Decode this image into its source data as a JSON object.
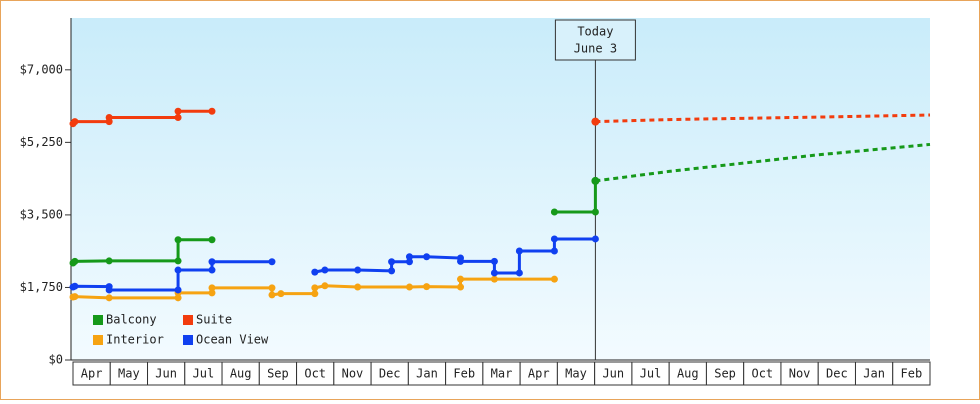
{
  "chart_data": {
    "type": "line",
    "xticks": [
      {
        "value": 0,
        "label": "Apr"
      },
      {
        "value": 1,
        "label": "May"
      },
      {
        "value": 2,
        "label": "Jun"
      },
      {
        "value": 3,
        "label": "Jul"
      },
      {
        "value": 4,
        "label": "Aug"
      },
      {
        "value": 5,
        "label": "Sep"
      },
      {
        "value": 6,
        "label": "Oct"
      },
      {
        "value": 7,
        "label": "Nov"
      },
      {
        "value": 8,
        "label": "Dec"
      },
      {
        "value": 9,
        "label": "Jan"
      },
      {
        "value": 10,
        "label": "Feb"
      },
      {
        "value": 11,
        "label": "Mar"
      },
      {
        "value": 12,
        "label": "Apr"
      },
      {
        "value": 13,
        "label": "May"
      },
      {
        "value": 14,
        "label": "Jun"
      },
      {
        "value": 15,
        "label": "Jul"
      },
      {
        "value": 16,
        "label": "Aug"
      },
      {
        "value": 17,
        "label": "Sep"
      },
      {
        "value": 18,
        "label": "Oct"
      },
      {
        "value": 19,
        "label": "Nov"
      },
      {
        "value": 20,
        "label": "Dec"
      },
      {
        "value": 21,
        "label": "Jan"
      },
      {
        "value": 22,
        "label": "Feb"
      }
    ],
    "xlim": [
      0,
      23
    ],
    "ylim": [
      0,
      8250
    ],
    "yticks": [
      {
        "value": 0,
        "label": "$0"
      },
      {
        "value": 1750,
        "label": "$1,750"
      },
      {
        "value": 3500,
        "label": "$3,500"
      },
      {
        "value": 5250,
        "label": "$5,250"
      },
      {
        "value": 7000,
        "label": "$7,000"
      }
    ],
    "annotation": {
      "lines": [
        "Today",
        "June 3"
      ],
      "x": 14.02
    },
    "legend": "lower left",
    "series": [
      {
        "name": "Balcony",
        "color": "#16991a",
        "x": [
          0,
          0.05,
          0.97,
          2.82,
          2.82,
          3.73,
          null,
          12.92,
          14.02,
          14.02
        ],
        "values": [
          2340,
          2380,
          2390,
          2390,
          2900,
          2900,
          null,
          3570,
          3570,
          4320
        ],
        "forecast_x": [
          14.02,
          16,
          18,
          20,
          23
        ],
        "forecast_values": [
          4320,
          4550,
          4750,
          4950,
          5200
        ]
      },
      {
        "name": "Suite",
        "color": "#f23c0e",
        "x": [
          0,
          0.05,
          0.97,
          0.97,
          2.82,
          2.82,
          3.73
        ],
        "values": [
          5700,
          5750,
          5750,
          5850,
          5850,
          6000,
          6000
        ],
        "forecast_x": [
          14.02,
          16,
          18,
          20,
          23
        ],
        "forecast_values": [
          5750,
          5800,
          5830,
          5860,
          5910
        ]
      },
      {
        "name": "Interior",
        "color": "#f6a312",
        "x": [
          0,
          0.05,
          0.97,
          2.82,
          2.82,
          3.73,
          3.73,
          5.34,
          5.34,
          5.58,
          6.49,
          6.49,
          6.76,
          7.64,
          9.03,
          9.49,
          10.4,
          10.4,
          11.31,
          12.92
        ],
        "values": [
          1520,
          1530,
          1500,
          1500,
          1620,
          1620,
          1740,
          1740,
          1570,
          1600,
          1600,
          1740,
          1790,
          1760,
          1760,
          1770,
          1760,
          1950,
          1950,
          1950
        ]
      },
      {
        "name": "Ocean View",
        "color": "#1040f0",
        "x": [
          0,
          0.05,
          0.97,
          0.97,
          2.82,
          2.82,
          3.73,
          3.73,
          5.34,
          null,
          6.49,
          6.76,
          7.64,
          8.55,
          8.55,
          9.03,
          9.03,
          9.49,
          10.4,
          10.4,
          11.31,
          11.31,
          11.98,
          11.98,
          12.92,
          12.92,
          14.02
        ],
        "values": [
          1760,
          1780,
          1770,
          1690,
          1690,
          2170,
          2170,
          2370,
          2370,
          null,
          2120,
          2170,
          2170,
          2150,
          2370,
          2370,
          2490,
          2490,
          2460,
          2380,
          2380,
          2100,
          2100,
          2630,
          2630,
          2920,
          2920
        ]
      }
    ]
  }
}
